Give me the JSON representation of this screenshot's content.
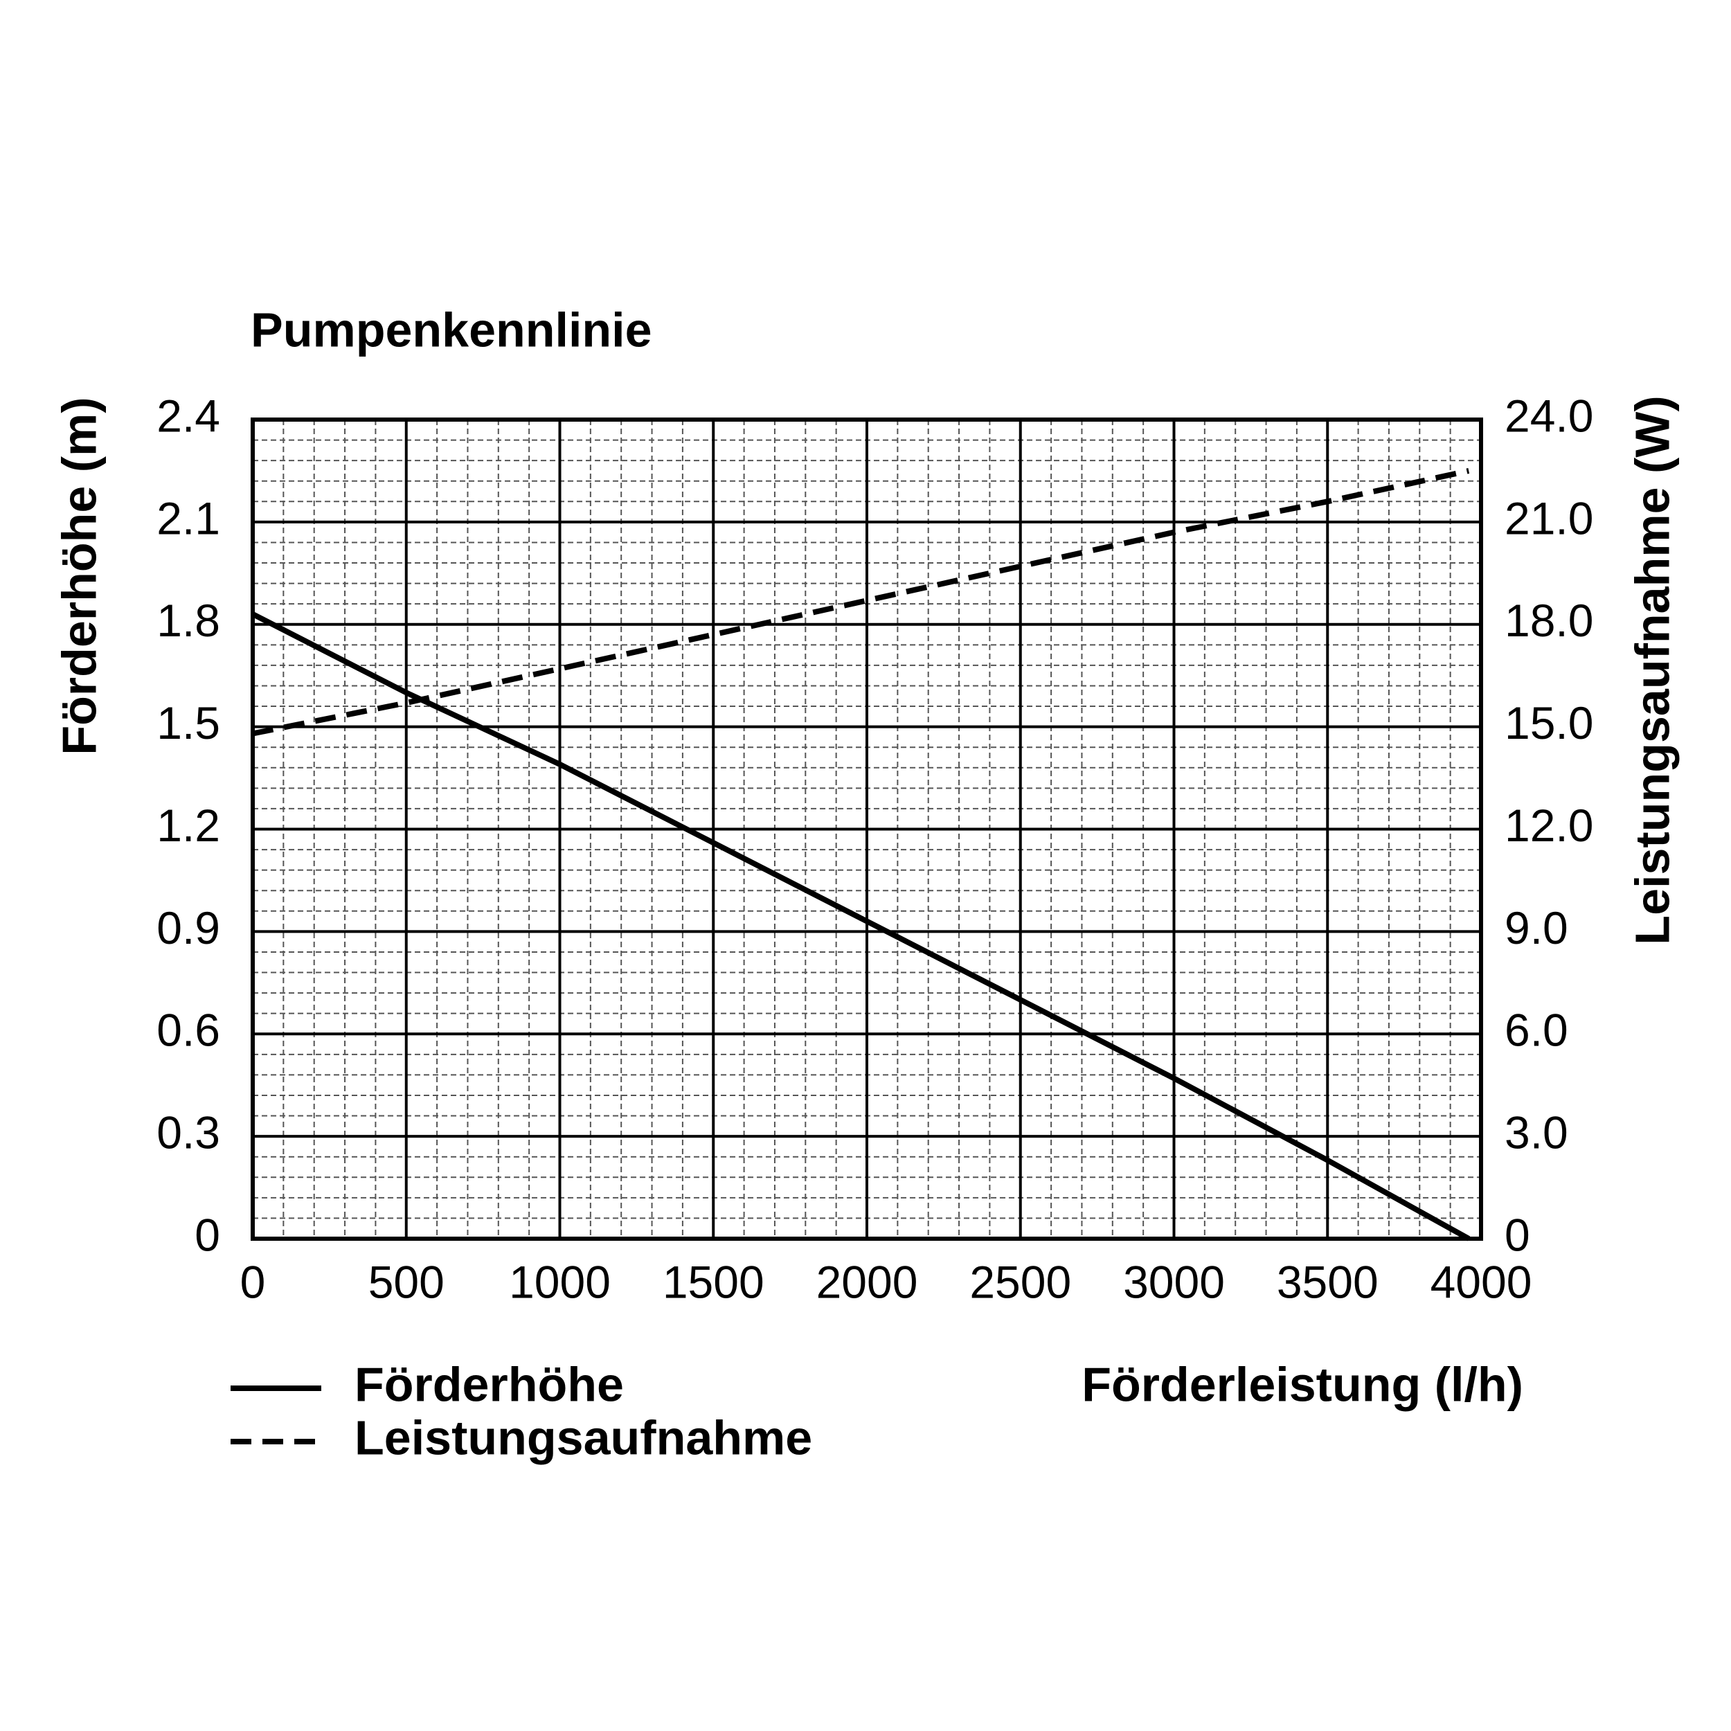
{
  "chart_data": {
    "type": "line",
    "title": "Pumpenkennlinie",
    "x_label": "Förderleistung (l/h)",
    "y_label": "Förderhöhe (m)",
    "y2_label": "Leistungsaufnahme (W)",
    "x": [
      0,
      500,
      1000,
      1500,
      2000,
      2500,
      3000,
      3500,
      3960
    ],
    "series": [
      {
        "name": "Förderhöhe",
        "color": "#000000",
        "dash": "solid",
        "values": [
          1.83,
          1.6,
          1.39,
          1.16,
          0.93,
          0.7,
          0.47,
          0.23,
          0
        ]
      },
      {
        "name": "Leistungsaufnahme",
        "color": "#000000",
        "dash": "dashed",
        "axis": "y2",
        "values": [
          14.8,
          15.7,
          16.7,
          17.7,
          18.7,
          19.7,
          20.7,
          21.6,
          22.5
        ]
      }
    ],
    "xlim": [
      0,
      4000
    ],
    "xticks": [
      0,
      500,
      1000,
      1500,
      2000,
      2500,
      3000,
      3500,
      4000
    ],
    "ylim": [
      0,
      2.4
    ],
    "yticks": [
      0,
      0.3,
      0.6,
      0.9,
      1.2,
      1.5,
      1.8,
      2.1,
      2.4
    ],
    "y2lim": [
      0,
      24
    ],
    "y2ticks": [
      0,
      {
        "value": 3,
        "label": "3.0"
      },
      {
        "value": 6,
        "label": "6.0"
      },
      {
        "value": 9,
        "label": "9.0"
      },
      {
        "value": 12,
        "label": "12.0"
      },
      {
        "value": 15,
        "label": "15.0"
      },
      {
        "value": 18,
        "label": "18.0"
      },
      {
        "value": 21,
        "label": "21.0"
      },
      {
        "value": 24,
        "label": "24.0"
      }
    ],
    "grid": true,
    "legend": "bottom-left"
  }
}
